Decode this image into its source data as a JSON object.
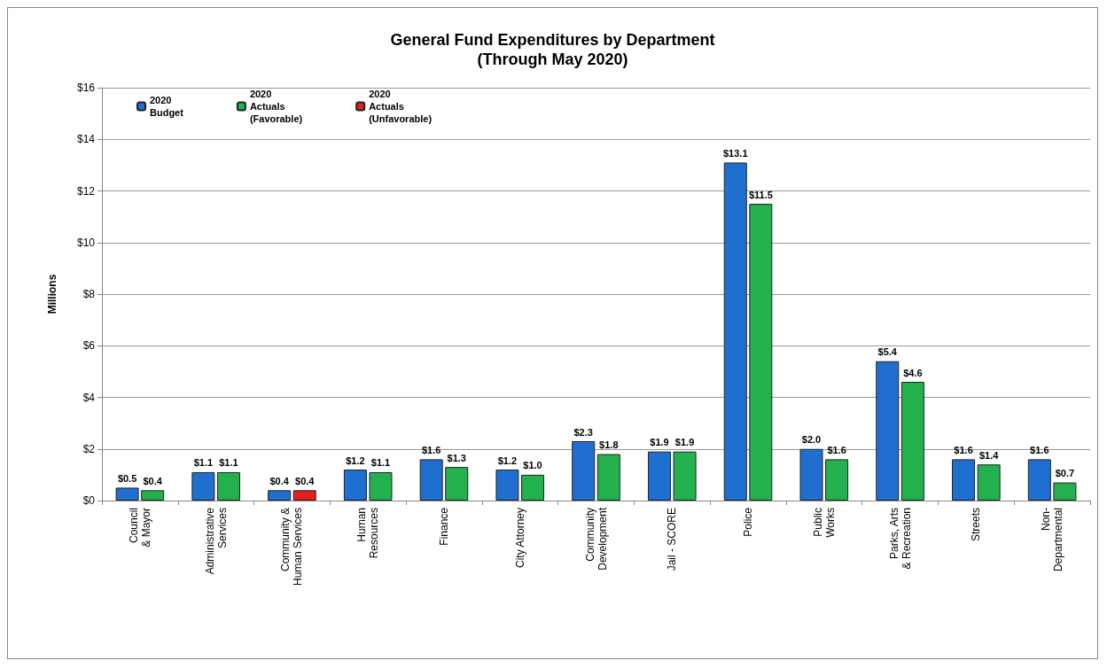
{
  "chart_data": {
    "type": "bar",
    "title": "General Fund Expenditures by Department\n(Through May 2020)",
    "ylabel": "Millions",
    "categories": [
      "Council\n& Mayor",
      "Administrative\nServices",
      "Community &\nHuman Services",
      "Human\nResources",
      "Finance",
      "City Attorney",
      "Community\nDevelopment",
      "Jail - SCORE",
      "Police",
      "Public\nWorks",
      "Parks, Arts\n& Recreation",
      "Streets",
      "Non-\nDepartmental"
    ],
    "series": [
      {
        "name": "2020\nBudget",
        "color": "#1f6fd0",
        "values": [
          0.5,
          1.1,
          0.4,
          1.2,
          1.6,
          1.2,
          2.3,
          1.9,
          13.1,
          2.0,
          5.4,
          1.6,
          1.6
        ],
        "value_labels": [
          "$0.5",
          "$1.1",
          "$0.4",
          "$1.2",
          "$1.6",
          "$1.2",
          "$2.3",
          "$1.9",
          "$13.1",
          "$2.0",
          "$5.4",
          "$1.6",
          "$1.6"
        ]
      },
      {
        "name": "2020\nActuals\n(Favorable)",
        "color": "#22b14c",
        "values": [
          0.4,
          1.1,
          null,
          1.1,
          1.3,
          1.0,
          1.8,
          1.9,
          11.5,
          1.6,
          4.6,
          1.4,
          0.7
        ],
        "value_labels": [
          "$0.4",
          "$1.1",
          null,
          "$1.1",
          "$1.3",
          "$1.0",
          "$1.8",
          "$1.9",
          "$11.5",
          "$1.6",
          "$4.6",
          "$1.4",
          "$0.7"
        ]
      },
      {
        "name": "2020\nActuals\n(Unfavorable)",
        "color": "#e3201b",
        "values": [
          null,
          null,
          0.4,
          null,
          null,
          null,
          null,
          null,
          null,
          null,
          null,
          null,
          null
        ],
        "value_labels": [
          null,
          null,
          "$0.4",
          null,
          null,
          null,
          null,
          null,
          null,
          null,
          null,
          null,
          null
        ]
      }
    ],
    "ylim": [
      0,
      16
    ],
    "yticks": [
      {
        "value": 0,
        "label": "$0"
      },
      {
        "value": 2,
        "label": "$2"
      },
      {
        "value": 4,
        "label": "$4"
      },
      {
        "value": 6,
        "label": "$6"
      },
      {
        "value": 8,
        "label": "$8"
      },
      {
        "value": 10,
        "label": "$10"
      },
      {
        "value": 12,
        "label": "$12"
      },
      {
        "value": 14,
        "label": "$14"
      },
      {
        "value": 16,
        "label": "$16"
      }
    ],
    "grid": "y",
    "legend": "top left"
  }
}
